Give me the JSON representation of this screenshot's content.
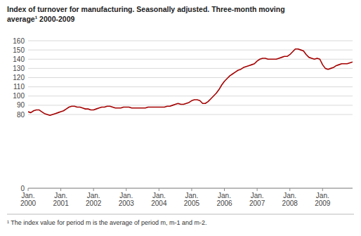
{
  "chart_data": {
    "type": "line",
    "title": "Index of turnover for manufacturing. Seasonally adjusted. Three-month moving\naverage¹ 2000-2009",
    "footnote": "¹ The index value for period m is the average of period m, m-1 and m-2.",
    "color": "#a50000",
    "grid": true,
    "ylim": [
      0,
      160
    ],
    "yticks": [
      0,
      80,
      90,
      100,
      110,
      120,
      130,
      140,
      150,
      160
    ],
    "categories": [
      "Jan.\n2000",
      null,
      null,
      null,
      null,
      null,
      null,
      null,
      null,
      null,
      null,
      null,
      "Jan.\n2001",
      null,
      null,
      null,
      null,
      null,
      null,
      null,
      null,
      null,
      null,
      null,
      "Jan.\n2002",
      null,
      null,
      null,
      null,
      null,
      null,
      null,
      null,
      null,
      null,
      null,
      "Jan.\n2003",
      null,
      null,
      null,
      null,
      null,
      null,
      null,
      null,
      null,
      null,
      null,
      "Jan.\n2004",
      null,
      null,
      null,
      null,
      null,
      null,
      null,
      null,
      null,
      null,
      null,
      "Jan.\n2005",
      null,
      null,
      null,
      null,
      null,
      null,
      null,
      null,
      null,
      null,
      null,
      "Jan.\n2006",
      null,
      null,
      null,
      null,
      null,
      null,
      null,
      null,
      null,
      null,
      null,
      "Jan.\n2007",
      null,
      null,
      null,
      null,
      null,
      null,
      null,
      null,
      null,
      null,
      null,
      "Jan.\n2008",
      null,
      null,
      null,
      null,
      null,
      null,
      null,
      null,
      null,
      null,
      null,
      "Jan.\n2009",
      null,
      null,
      null,
      null,
      null,
      null,
      null,
      null,
      null,
      null,
      null
    ],
    "values": [
      83,
      82,
      84,
      85,
      85,
      83,
      81,
      80,
      79,
      80,
      81,
      82,
      83,
      84,
      86,
      88,
      89,
      89,
      88,
      88,
      87,
      86,
      86,
      85,
      85,
      86,
      87,
      88,
      88,
      89,
      89,
      88,
      87,
      87,
      87,
      88,
      88,
      88,
      87,
      87,
      87,
      87,
      87,
      87,
      88,
      88,
      88,
      88,
      88,
      88,
      88,
      89,
      89,
      90,
      91,
      92,
      91,
      91,
      92,
      93,
      95,
      96,
      96,
      95,
      92,
      92,
      94,
      97,
      100,
      103,
      107,
      112,
      116,
      119,
      122,
      124,
      126,
      128,
      129,
      131,
      132,
      133,
      134,
      135,
      138,
      140,
      141,
      141,
      140,
      140,
      140,
      140,
      141,
      142,
      143,
      143,
      145,
      148,
      151,
      151,
      150,
      149,
      145,
      142,
      141,
      140,
      141,
      140,
      134,
      130,
      129,
      130,
      131,
      133,
      134,
      135,
      135,
      135,
      136,
      137
    ]
  }
}
